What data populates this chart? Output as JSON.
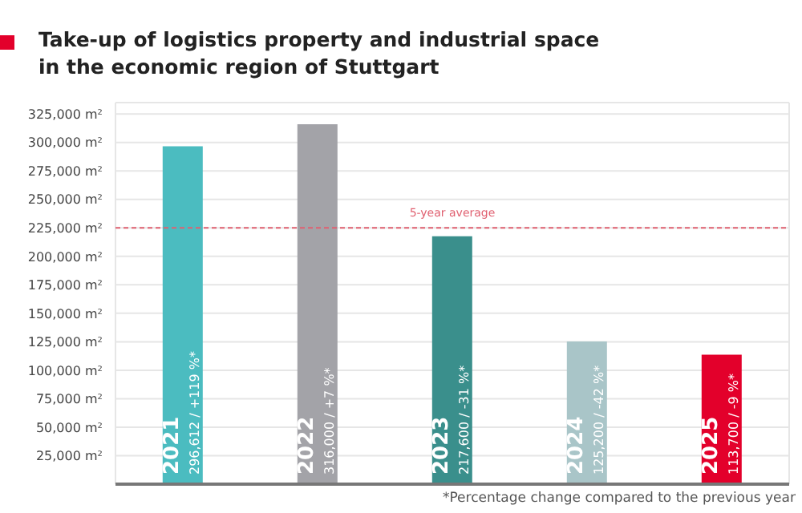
{
  "chart_data": {
    "type": "bar",
    "title": "Take-up of logistics property and industrial space in the economic region of Stuttgart",
    "categories": [
      "2021",
      "2022",
      "2023",
      "2024",
      "2025"
    ],
    "values": [
      296612,
      316000,
      217600,
      125200,
      113700
    ],
    "colors": [
      "#4bbcc0",
      "#a3a3a8",
      "#3a8f8c",
      "#a9c5c8",
      "#e3002b"
    ],
    "value_labels": [
      "296,612 / +119 %*",
      "316,000 / +7 %*",
      "217,600 / -31 %*",
      "125,200 / -42 %*",
      "113,700 / -9 %*"
    ],
    "ylim": [
      0,
      335000
    ],
    "yticks": [
      {
        "value": 25000,
        "label": "25,000 m²"
      },
      {
        "value": 50000,
        "label": "50,000 m²"
      },
      {
        "value": 75000,
        "label": "75,000 m²"
      },
      {
        "value": 100000,
        "label": "100,000 m²"
      },
      {
        "value": 125000,
        "label": "125,000 m²"
      },
      {
        "value": 150000,
        "label": "150,000 m²"
      },
      {
        "value": 175000,
        "label": "175,000 m²"
      },
      {
        "value": 200000,
        "label": "200,000 m²"
      },
      {
        "value": 225000,
        "label": "225,000 m²"
      },
      {
        "value": 250000,
        "label": "250,000 m²"
      },
      {
        "value": 275000,
        "label": "275,000 m²"
      },
      {
        "value": 300000,
        "label": "300,000 m²"
      },
      {
        "value": 325000,
        "label": "325,000 m²"
      }
    ],
    "ref_lines": [
      {
        "axis": "y",
        "value": 225000,
        "label": "5-year average",
        "color": "#e06070",
        "line_style": "dashed"
      }
    ],
    "annotations": [
      "*Percentage change compared to the previous year"
    ],
    "grid": true,
    "tick_labels": "y"
  }
}
